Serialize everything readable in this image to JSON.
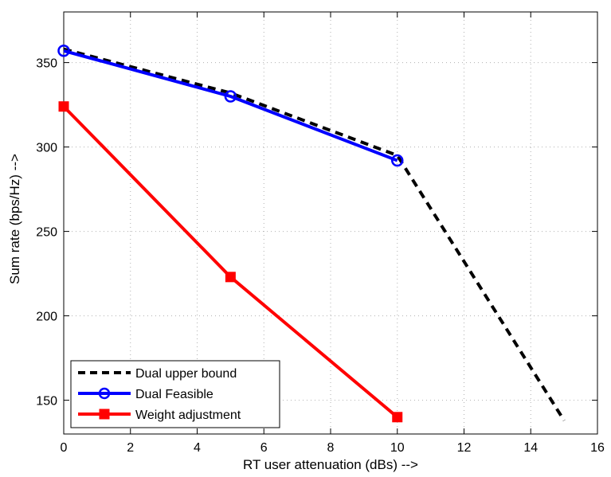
{
  "chart_data": {
    "type": "line",
    "xlabel": "RT user attenuation (dBs)   -->",
    "ylabel": "Sum rate (bps/Hz)   -->",
    "xlim": [
      0,
      16
    ],
    "ylim": [
      130,
      380
    ],
    "xticks": [
      0,
      2,
      4,
      6,
      8,
      10,
      12,
      14,
      16
    ],
    "yticks": [
      150,
      200,
      250,
      300,
      350
    ],
    "grid": true,
    "legend_position": "bottom-left",
    "series": [
      {
        "name": "Dual upper bound",
        "color": "#000000",
        "style": "dashed",
        "marker": "none",
        "x": [
          0,
          5,
          10,
          15
        ],
        "y": [
          358,
          332,
          295,
          138
        ]
      },
      {
        "name": "Dual Feasible",
        "color": "#0000ff",
        "style": "solid",
        "marker": "circle",
        "x": [
          0,
          5,
          10
        ],
        "y": [
          357,
          330,
          292
        ]
      },
      {
        "name": "Weight adjustment",
        "color": "#ff0000",
        "style": "solid",
        "marker": "square",
        "x": [
          0,
          5,
          10
        ],
        "y": [
          324,
          223,
          140
        ]
      }
    ]
  }
}
